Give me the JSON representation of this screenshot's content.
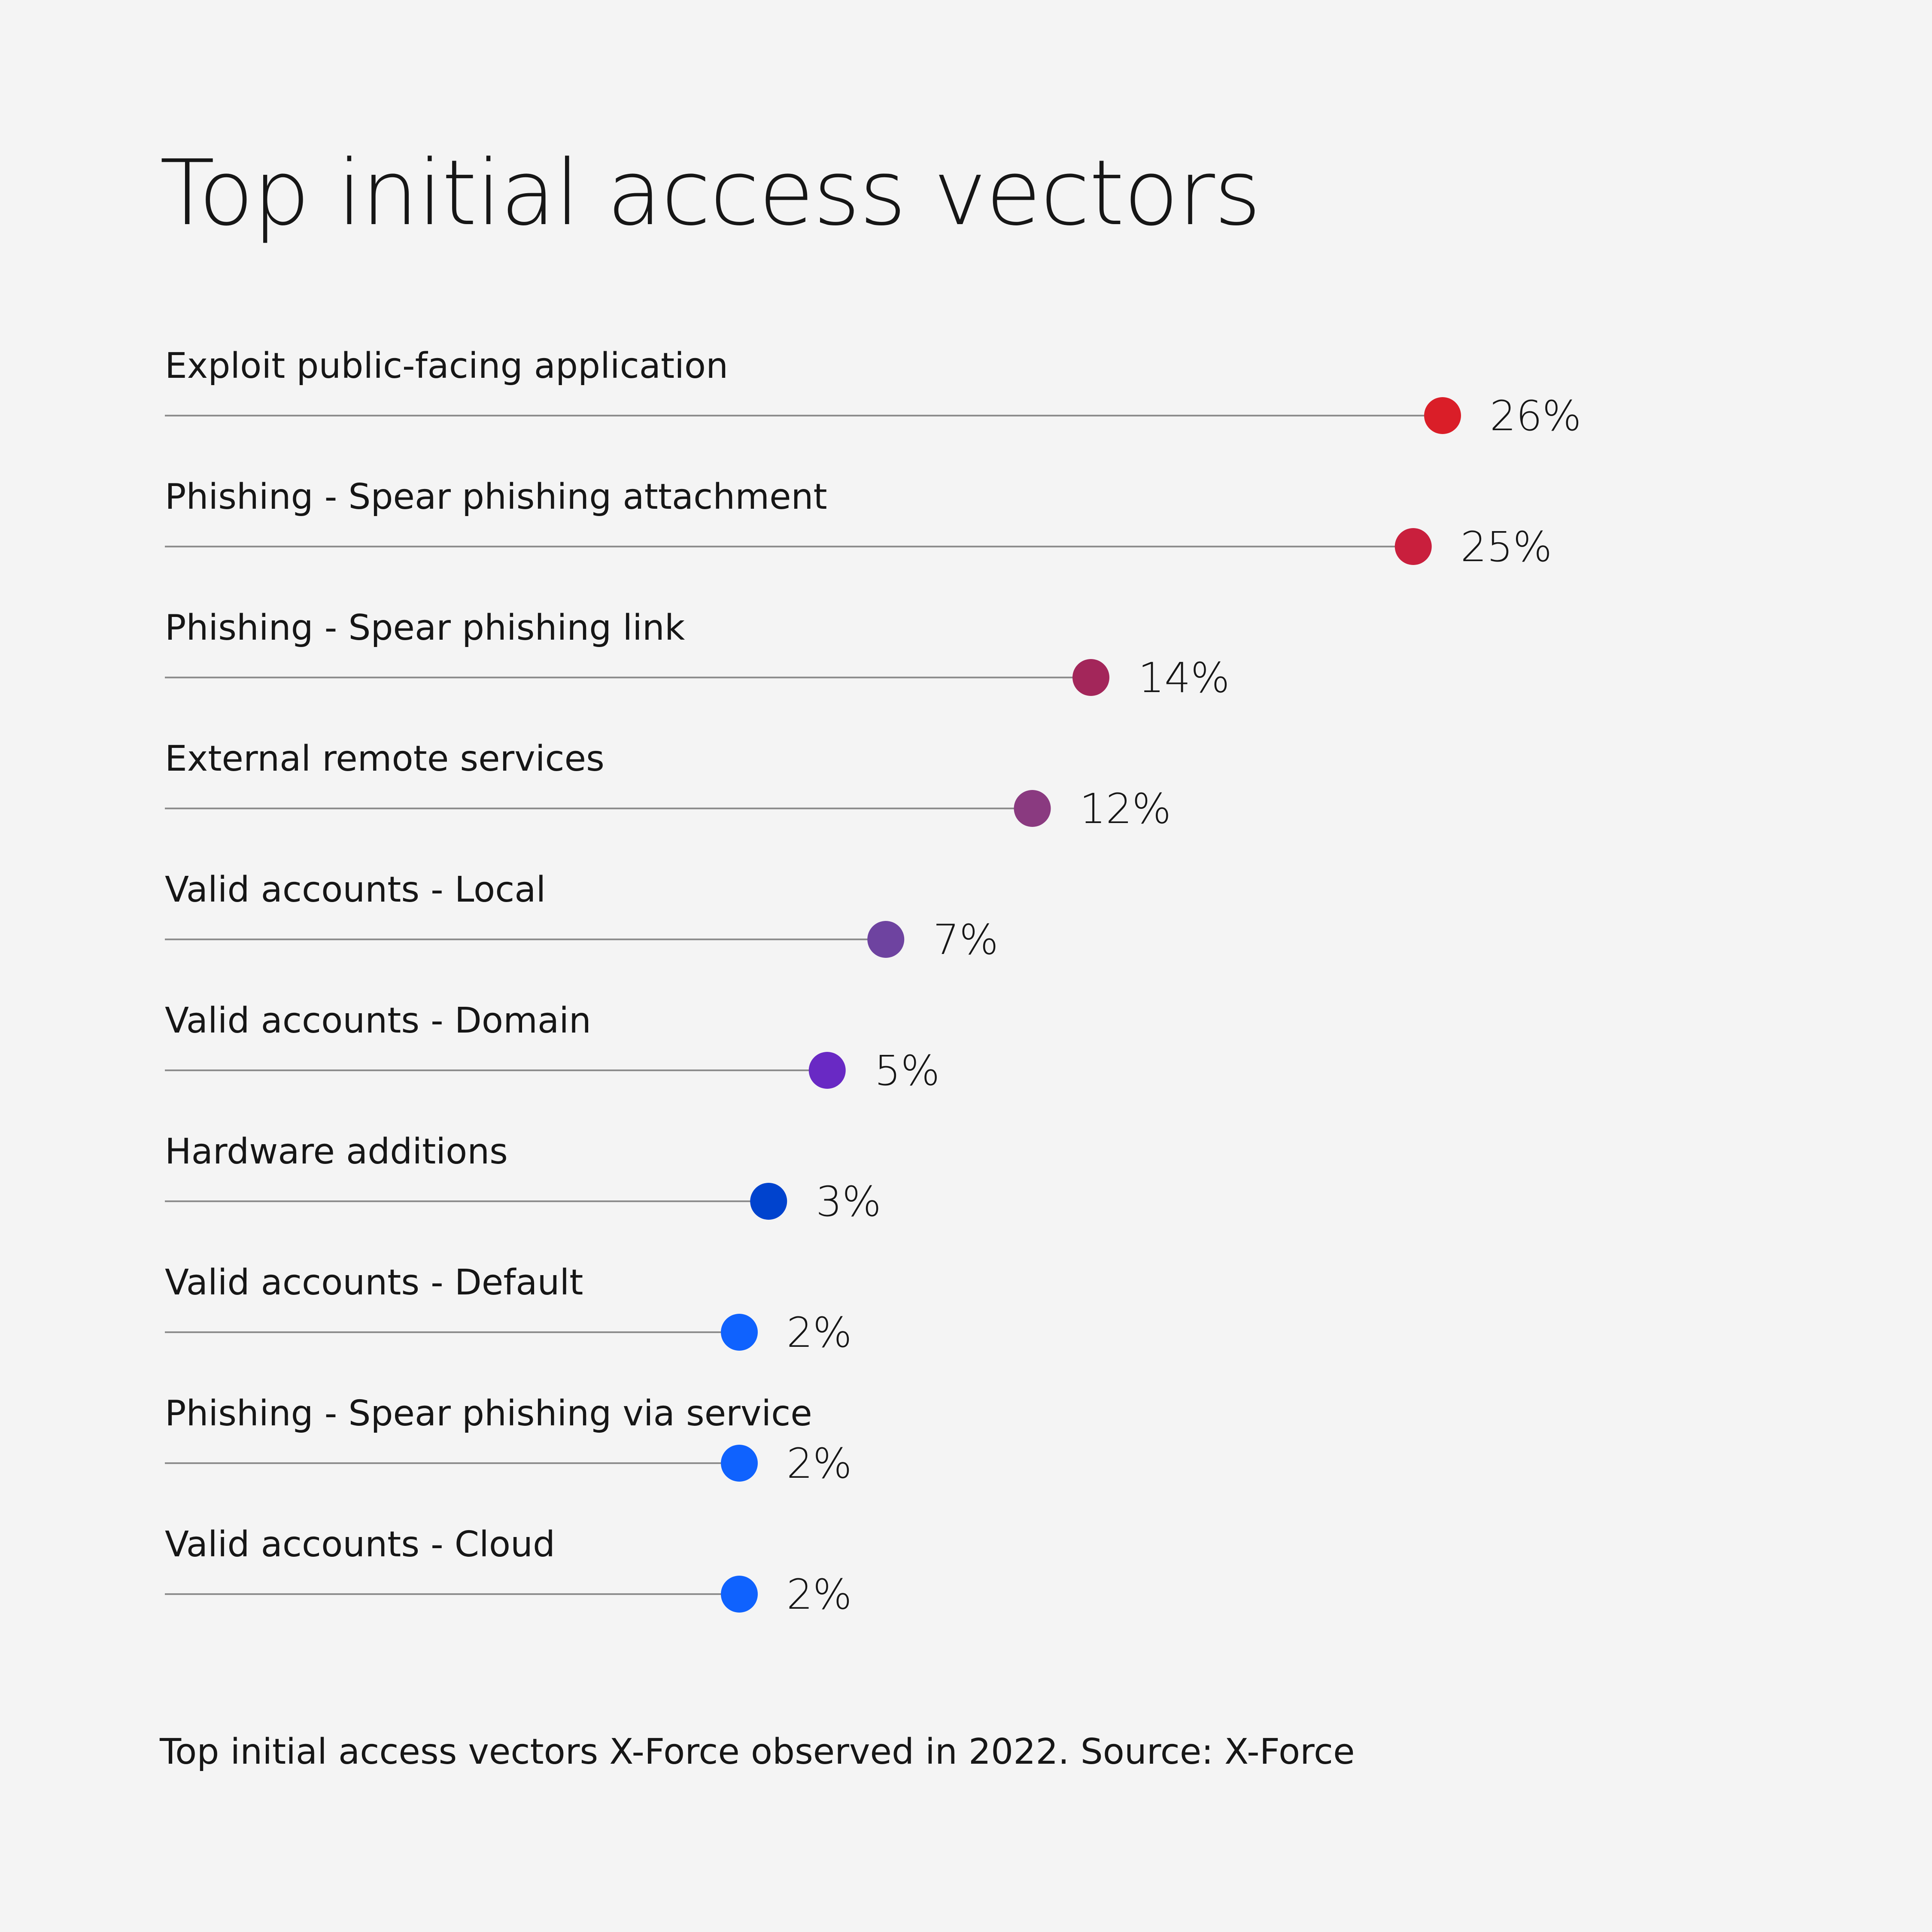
{
  "title": "Top initial access vectors",
  "caption": "Top initial access vectors X-Force observed in 2022. Source: X-Force",
  "chart_data": {
    "type": "dot",
    "title": "Top initial access vectors",
    "categories": [
      "Exploit public-facing application",
      "Phishing - Spear phishing attachment",
      "Phishing - Spear phishing link",
      "External remote services",
      "Valid accounts - Local",
      "Valid accounts - Domain",
      "Hardware additions",
      "Valid accounts - Default",
      "Phishing - Spear phishing via service",
      "Valid accounts - Cloud"
    ],
    "values": [
      26,
      25,
      14,
      12,
      7,
      5,
      3,
      2,
      2,
      2
    ],
    "value_labels": [
      "26%",
      "25%",
      "14%",
      "12%",
      "7%",
      "5%",
      "3%",
      "2%",
      "2%",
      "2%"
    ],
    "unit": "%",
    "colors": [
      "#da1e28",
      "#c91f3d",
      "#a3265a",
      "#8a3a80",
      "#6e43a0",
      "#6929c4",
      "#0043ce",
      "#0f62fe",
      "#0f62fe",
      "#0f62fe"
    ],
    "line_color": "#8d8d8d",
    "grid": false,
    "legend": "none"
  }
}
